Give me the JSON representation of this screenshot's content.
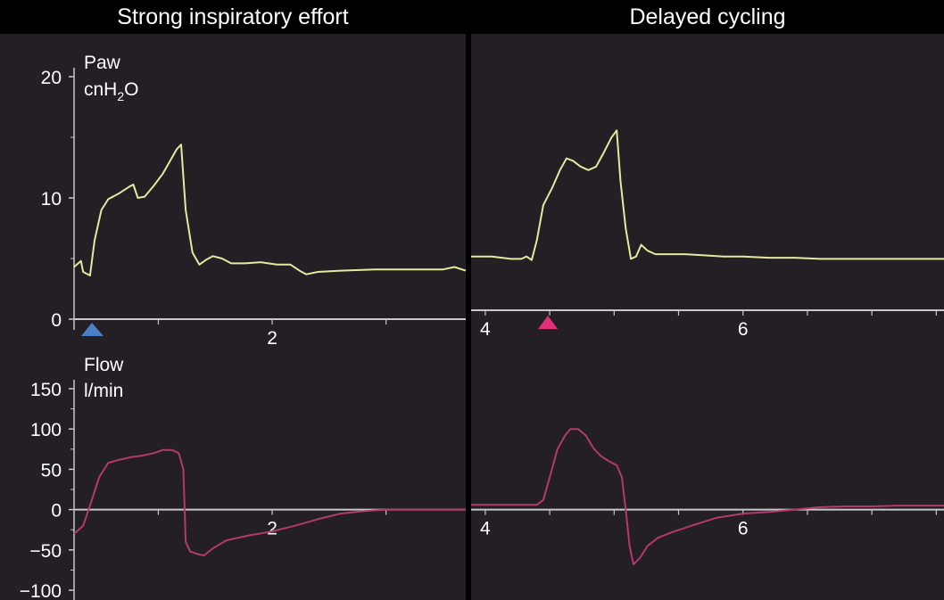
{
  "chart_data": [
    {
      "type": "line",
      "title": "Strong inspiratory effort",
      "panel": "left-top",
      "ylabel": "Paw",
      "yunit_prefix": "cnH",
      "yunit_sub": "2",
      "yunit_suffix": "O",
      "ylim": [
        0,
        20
      ],
      "yticks": [
        0,
        10,
        20
      ],
      "xlim": [
        1.13,
        2.85
      ],
      "xticks": [
        2
      ],
      "series": [
        {
          "color": "#e6e8a0",
          "points": [
            [
              1.13,
              4.3
            ],
            [
              1.16,
              4.8
            ],
            [
              1.17,
              3.9
            ],
            [
              1.2,
              3.6
            ],
            [
              1.22,
              6.5
            ],
            [
              1.25,
              9.0
            ],
            [
              1.28,
              9.9
            ],
            [
              1.33,
              10.4
            ],
            [
              1.37,
              10.9
            ],
            [
              1.39,
              11.1
            ],
            [
              1.41,
              10.0
            ],
            [
              1.44,
              10.1
            ],
            [
              1.48,
              11.0
            ],
            [
              1.52,
              12.0
            ],
            [
              1.55,
              13.0
            ],
            [
              1.58,
              14.0
            ],
            [
              1.6,
              14.4
            ],
            [
              1.62,
              9.0
            ],
            [
              1.65,
              5.5
            ],
            [
              1.68,
              4.5
            ],
            [
              1.71,
              4.9
            ],
            [
              1.74,
              5.2
            ],
            [
              1.78,
              5.0
            ],
            [
              1.82,
              4.6
            ],
            [
              1.88,
              4.6
            ],
            [
              1.95,
              4.7
            ],
            [
              2.02,
              4.5
            ],
            [
              2.08,
              4.5
            ],
            [
              2.12,
              4.0
            ],
            [
              2.15,
              3.7
            ],
            [
              2.2,
              3.9
            ],
            [
              2.3,
              4.0
            ],
            [
              2.45,
              4.1
            ],
            [
              2.6,
              4.1
            ],
            [
              2.75,
              4.1
            ],
            [
              2.8,
              4.3
            ],
            [
              2.85,
              4.0
            ]
          ]
        }
      ]
    },
    {
      "type": "line",
      "title": "Strong inspiratory effort",
      "panel": "left-bottom",
      "ylabel": "Flow",
      "yunit": "l/min",
      "ylim": [
        -100,
        150
      ],
      "yticks": [
        -100,
        -50,
        0,
        50,
        100,
        150
      ],
      "xlim": [
        1.13,
        2.85
      ],
      "xticks": [
        2
      ],
      "series": [
        {
          "color": "#b23a6e",
          "points": [
            [
              1.13,
              -30
            ],
            [
              1.17,
              -20
            ],
            [
              1.2,
              5
            ],
            [
              1.24,
              40
            ],
            [
              1.28,
              58
            ],
            [
              1.33,
              62
            ],
            [
              1.38,
              65
            ],
            [
              1.43,
              67
            ],
            [
              1.48,
              70
            ],
            [
              1.52,
              74
            ],
            [
              1.56,
              74
            ],
            [
              1.59,
              70
            ],
            [
              1.61,
              50
            ],
            [
              1.62,
              -40
            ],
            [
              1.64,
              -52
            ],
            [
              1.67,
              -55
            ],
            [
              1.7,
              -57
            ],
            [
              1.74,
              -48
            ],
            [
              1.8,
              -38
            ],
            [
              1.9,
              -32
            ],
            [
              2.0,
              -27
            ],
            [
              2.1,
              -20
            ],
            [
              2.2,
              -12
            ],
            [
              2.3,
              -5
            ],
            [
              2.4,
              -2
            ],
            [
              2.5,
              0
            ],
            [
              2.65,
              0
            ],
            [
              2.85,
              0
            ]
          ]
        }
      ]
    },
    {
      "type": "line",
      "title": "Delayed cycling",
      "panel": "right-top",
      "ylim": [
        0,
        20
      ],
      "xlim": [
        3.89,
        7.56
      ],
      "xticks": [
        4,
        6
      ],
      "series": [
        {
          "color": "#e6e8a0",
          "points": [
            [
              3.89,
              4.6
            ],
            [
              4.05,
              4.6
            ],
            [
              4.2,
              4.4
            ],
            [
              4.28,
              4.4
            ],
            [
              4.32,
              4.6
            ],
            [
              4.36,
              4.3
            ],
            [
              4.4,
              6.0
            ],
            [
              4.45,
              9.0
            ],
            [
              4.52,
              10.5
            ],
            [
              4.58,
              12.0
            ],
            [
              4.63,
              13.0
            ],
            [
              4.68,
              12.8
            ],
            [
              4.74,
              12.3
            ],
            [
              4.8,
              12.0
            ],
            [
              4.86,
              12.3
            ],
            [
              4.92,
              13.5
            ],
            [
              4.98,
              14.8
            ],
            [
              5.02,
              15.4
            ],
            [
              5.05,
              11.0
            ],
            [
              5.09,
              7.0
            ],
            [
              5.13,
              4.4
            ],
            [
              5.17,
              4.6
            ],
            [
              5.21,
              5.6
            ],
            [
              5.26,
              5.1
            ],
            [
              5.32,
              4.8
            ],
            [
              5.4,
              4.8
            ],
            [
              5.55,
              4.8
            ],
            [
              5.7,
              4.7
            ],
            [
              5.85,
              4.6
            ],
            [
              6.0,
              4.6
            ],
            [
              6.2,
              4.5
            ],
            [
              6.4,
              4.5
            ],
            [
              6.6,
              4.4
            ],
            [
              6.8,
              4.4
            ],
            [
              7.0,
              4.4
            ],
            [
              7.2,
              4.4
            ],
            [
              7.4,
              4.4
            ],
            [
              7.56,
              4.4
            ]
          ]
        }
      ]
    },
    {
      "type": "line",
      "title": "Delayed cycling",
      "panel": "right-bottom",
      "ylim": [
        -100,
        150
      ],
      "xlim": [
        3.89,
        7.56
      ],
      "xticks": [
        4,
        6
      ],
      "series": [
        {
          "color": "#b23a6e",
          "points": [
            [
              3.89,
              6
            ],
            [
              4.2,
              6
            ],
            [
              4.4,
              6
            ],
            [
              4.45,
              12
            ],
            [
              4.5,
              40
            ],
            [
              4.56,
              75
            ],
            [
              4.62,
              92
            ],
            [
              4.66,
              100
            ],
            [
              4.72,
              100
            ],
            [
              4.78,
              92
            ],
            [
              4.84,
              76
            ],
            [
              4.9,
              66
            ],
            [
              4.96,
              60
            ],
            [
              5.02,
              55
            ],
            [
              5.06,
              40
            ],
            [
              5.09,
              0
            ],
            [
              5.12,
              -45
            ],
            [
              5.15,
              -68
            ],
            [
              5.2,
              -60
            ],
            [
              5.26,
              -45
            ],
            [
              5.34,
              -35
            ],
            [
              5.45,
              -28
            ],
            [
              5.6,
              -20
            ],
            [
              5.8,
              -10
            ],
            [
              6.0,
              -5
            ],
            [
              6.2,
              -3
            ],
            [
              6.4,
              0
            ],
            [
              6.6,
              3
            ],
            [
              6.8,
              4
            ],
            [
              7.0,
              4
            ],
            [
              7.2,
              5
            ],
            [
              7.4,
              5
            ],
            [
              7.56,
              5
            ]
          ]
        }
      ]
    }
  ],
  "headers": {
    "left": "Strong inspiratory effort",
    "right": "Delayed cycling"
  },
  "markers": {
    "blue_triangle_color": "#4a7fc7",
    "pink_triangle_color": "#e0307a"
  },
  "colors": {
    "background": "#000000",
    "panel": "#231f24",
    "axis": "#c8c8c8",
    "text": "#ffffff"
  }
}
